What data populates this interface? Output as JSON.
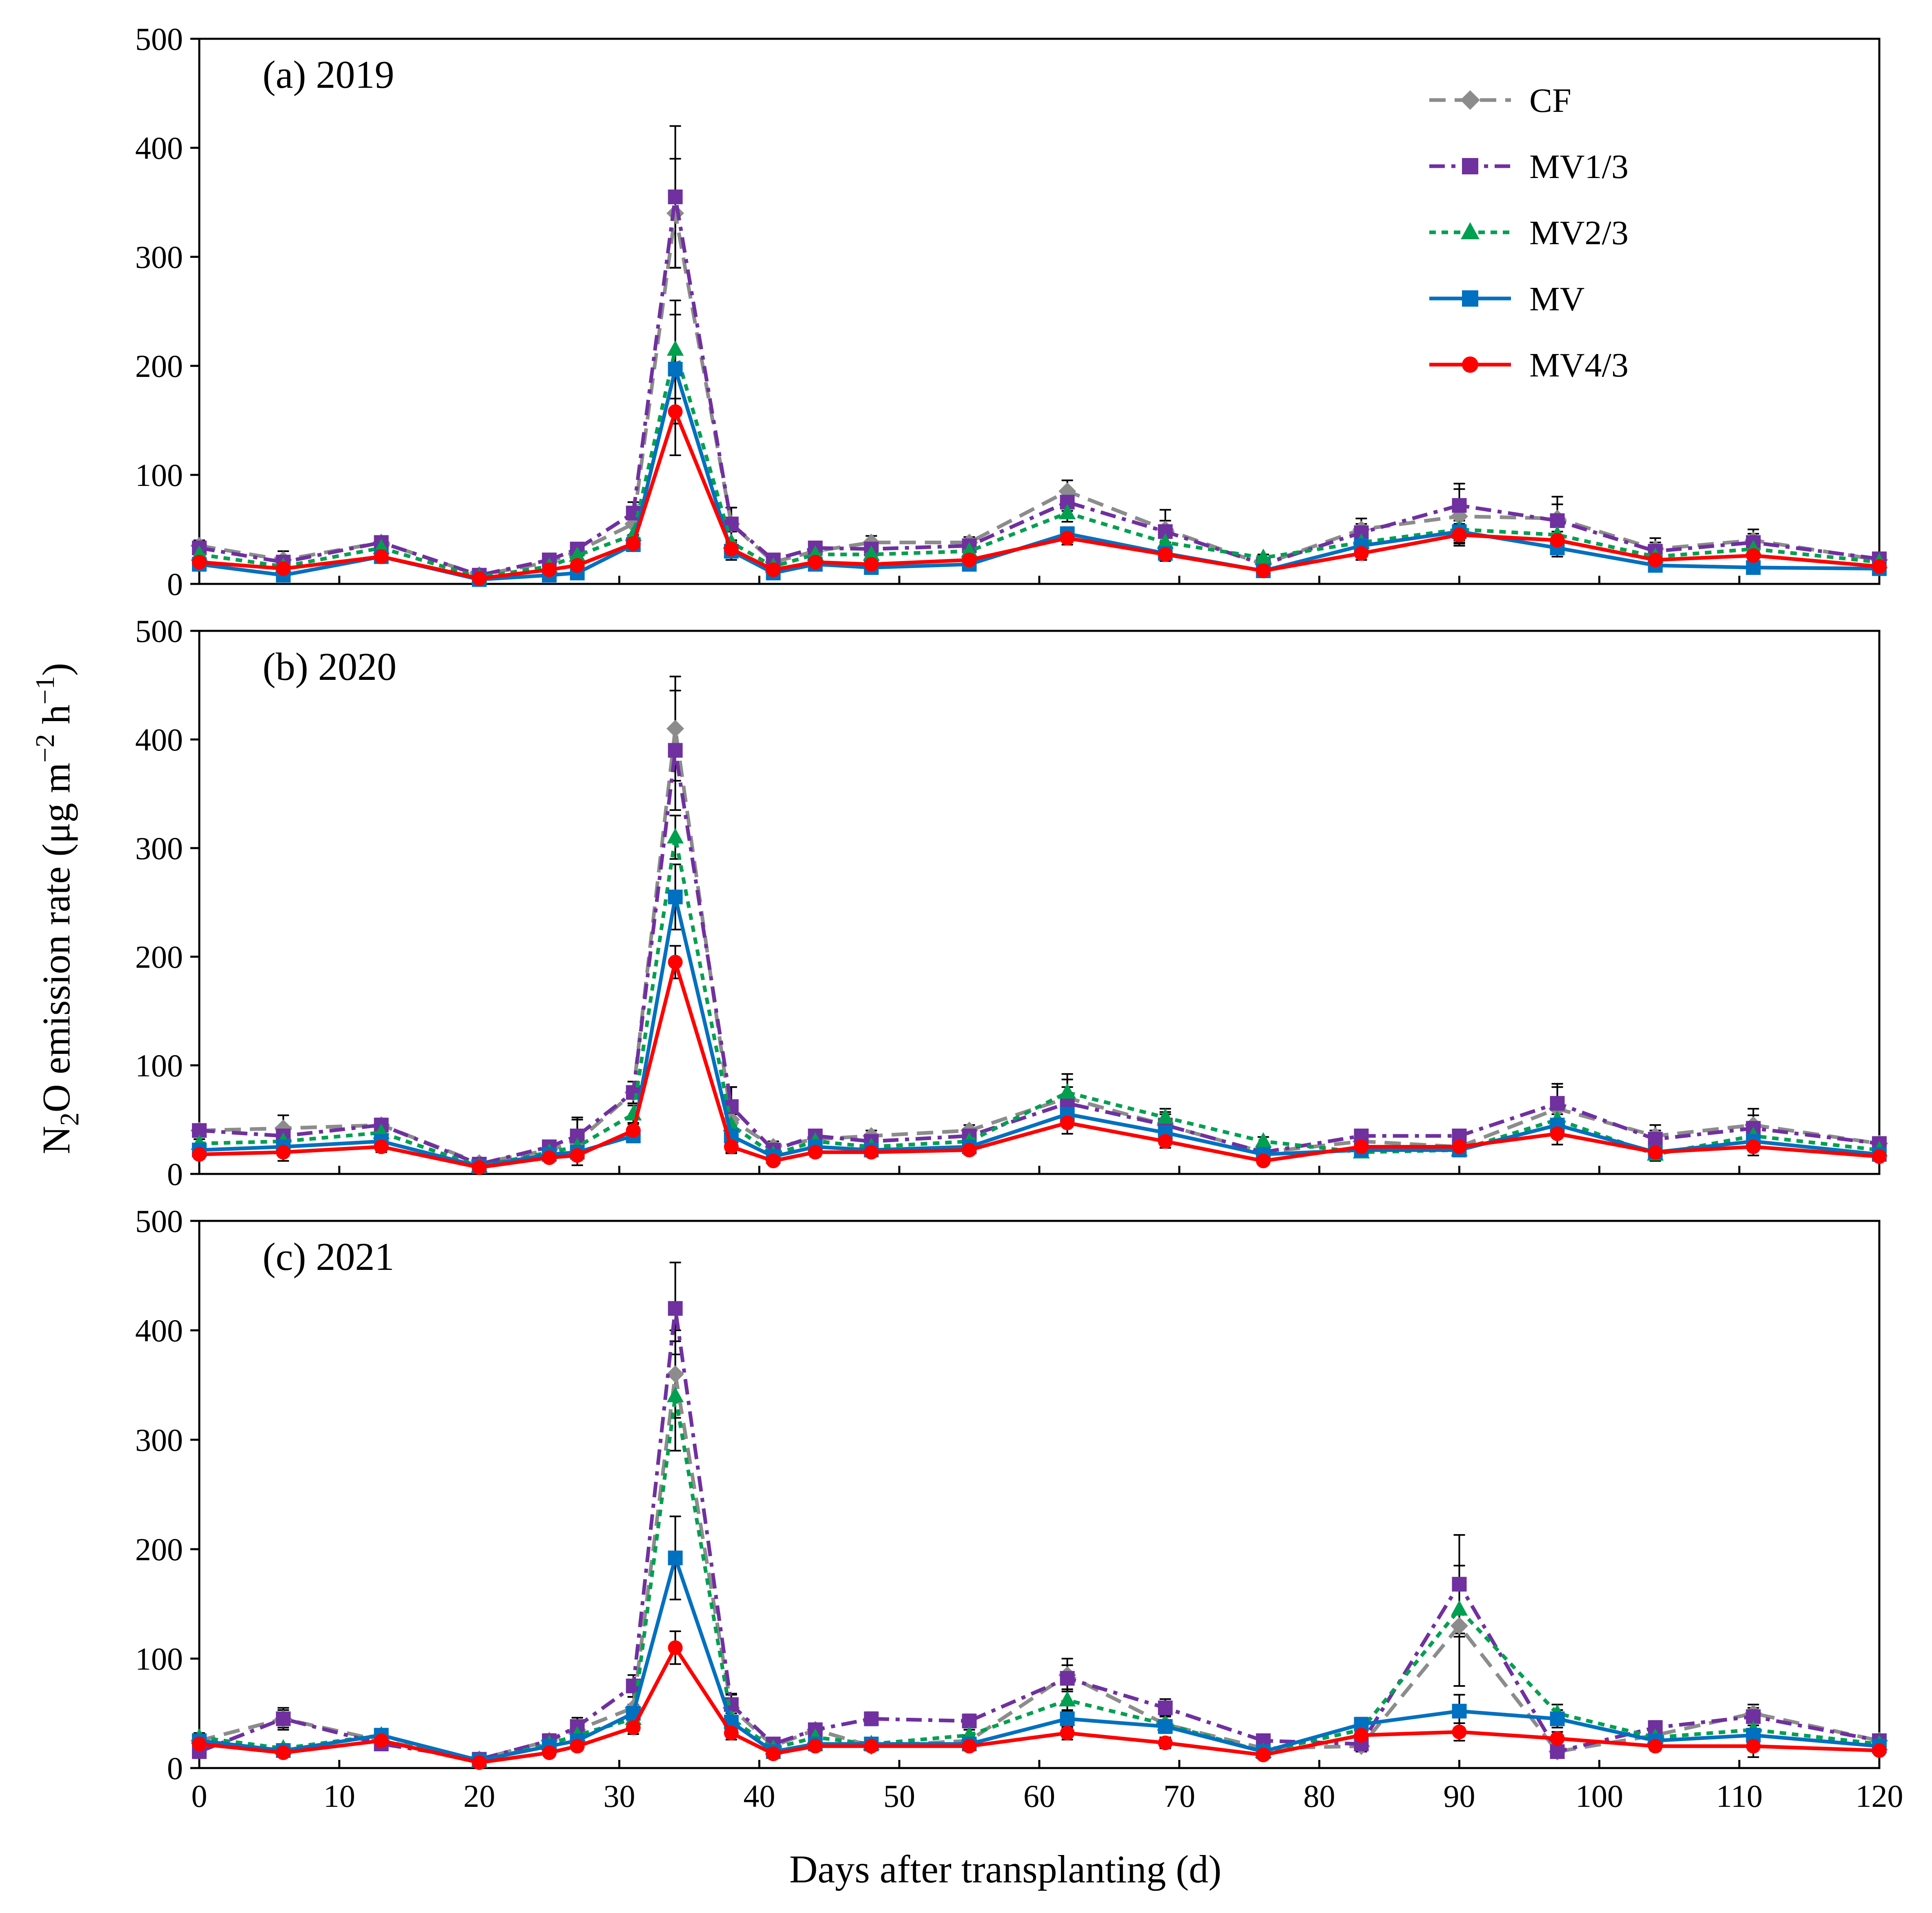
{
  "chart_data": {
    "type": "line",
    "xlabel": "Days after transplanting (d)",
    "ylabel": {
      "main": "N",
      "sub": "2",
      "rest": "O emission rate (μg m",
      "sup1": "−2",
      "mid": " h",
      "sup2": "−1",
      "end": ")"
    },
    "xlim": [
      0,
      120
    ],
    "ylim": [
      0,
      500
    ],
    "x_ticks": [
      0,
      10,
      20,
      30,
      40,
      50,
      60,
      70,
      80,
      90,
      100,
      110,
      120
    ],
    "y_ticks": [
      0,
      100,
      200,
      300,
      400,
      500
    ],
    "x": [
      0,
      6,
      13,
      20,
      25,
      27,
      31,
      34,
      38,
      41,
      44,
      48,
      55,
      62,
      69,
      76,
      83,
      90,
      97,
      104,
      111,
      120
    ],
    "series_styles": [
      {
        "name": "CF",
        "color": "#8c8c8c",
        "dash": "dash",
        "marker": "diamond"
      },
      {
        "name": "MV1/3",
        "color": "#7030a0",
        "dash": "dashdot",
        "marker": "square"
      },
      {
        "name": "MV2/3",
        "color": "#00a050",
        "dash": "dot",
        "marker": "triangle"
      },
      {
        "name": "MV",
        "color": "#0070c0",
        "dash": "solid",
        "marker": "square"
      },
      {
        "name": "MV4/3",
        "color": "#ff0000",
        "dash": "solid",
        "marker": "circle"
      }
    ],
    "panels": [
      {
        "title": "(a) 2019",
        "series": [
          {
            "name": "CF",
            "values": [
              35,
              22,
              38,
              8,
              20,
              30,
              55,
              340,
              55,
              20,
              30,
              38,
              38,
              85,
              50,
              18,
              50,
              62,
              60,
              32,
              40,
              22
            ],
            "errors": [
              5,
              8,
              5,
              3,
              5,
              5,
              10,
              50,
              15,
              5,
              5,
              6,
              5,
              10,
              18,
              3,
              10,
              25,
              20,
              10,
              10,
              4
            ]
          },
          {
            "name": "MV1/3",
            "values": [
              33,
              20,
              38,
              8,
              22,
              32,
              65,
              355,
              55,
              22,
              33,
              32,
              35,
              75,
              48,
              18,
              47,
              72,
              58,
              30,
              38,
              23
            ],
            "errors": [
              5,
              6,
              5,
              3,
              4,
              5,
              10,
              65,
              15,
              4,
              4,
              5,
              6,
              8,
              10,
              3,
              8,
              20,
              15,
              8,
              8,
              4
            ]
          },
          {
            "name": "MV2/3",
            "values": [
              27,
              16,
              33,
              6,
              16,
              26,
              45,
              215,
              38,
              16,
              27,
              27,
              30,
              65,
              38,
              24,
              38,
              50,
              45,
              25,
              32,
              20
            ],
            "errors": [
              4,
              5,
              4,
              2,
              4,
              4,
              8,
              45,
              10,
              4,
              4,
              4,
              5,
              8,
              8,
              3,
              8,
              10,
              10,
              6,
              6,
              4
            ]
          },
          {
            "name": "MV",
            "values": [
              18,
              8,
              25,
              4,
              8,
              10,
              36,
              197,
              30,
              10,
              18,
              15,
              18,
              46,
              28,
              12,
              35,
              48,
              33,
              17,
              15,
              14
            ],
            "errors": [
              3,
              3,
              4,
              2,
              3,
              3,
              6,
              50,
              8,
              3,
              4,
              3,
              4,
              6,
              6,
              3,
              6,
              10,
              8,
              4,
              4,
              3
            ]
          },
          {
            "name": "MV4/3",
            "values": [
              20,
              14,
              25,
              5,
              13,
              17,
              37,
              158,
              32,
              13,
              20,
              18,
              22,
              42,
              27,
              12,
              28,
              45,
              40,
              22,
              26,
              16
            ],
            "errors": [
              4,
              4,
              5,
              2,
              3,
              4,
              6,
              40,
              8,
              3,
              4,
              4,
              4,
              6,
              6,
              3,
              6,
              10,
              8,
              5,
              5,
              3
            ]
          }
        ]
      },
      {
        "title": "(b) 2020",
        "series": [
          {
            "name": "CF",
            "values": [
              40,
              42,
              45,
              10,
              22,
              30,
              75,
              410,
              50,
              25,
              32,
              35,
              40,
              70,
              45,
              20,
              30,
              25,
              60,
              35,
              45,
              28
            ],
            "errors": [
              5,
              12,
              6,
              3,
              5,
              22,
              10,
              48,
              30,
              5,
              6,
              5,
              5,
              22,
              12,
              3,
              5,
              5,
              20,
              10,
              15,
              5
            ]
          },
          {
            "name": "MV1/3",
            "values": [
              40,
              35,
              45,
              9,
              25,
              35,
              75,
              390,
              62,
              22,
              35,
              30,
              35,
              65,
              45,
              20,
              35,
              35,
              65,
              32,
              42,
              28
            ],
            "errors": [
              5,
              8,
              6,
              3,
              5,
              15,
              10,
              55,
              18,
              5,
              5,
              5,
              5,
              15,
              10,
              3,
              5,
              5,
              18,
              8,
              12,
              5
            ]
          },
          {
            "name": "MV2/3",
            "values": [
              28,
              30,
              38,
              7,
              20,
              25,
              55,
              310,
              45,
              18,
              30,
              25,
              30,
              75,
              52,
              30,
              20,
              22,
              50,
              18,
              35,
              22
            ],
            "errors": [
              4,
              6,
              5,
              2,
              4,
              6,
              8,
              20,
              10,
              4,
              5,
              4,
              5,
              12,
              8,
              4,
              4,
              4,
              10,
              6,
              10,
              4
            ]
          },
          {
            "name": "MV",
            "values": [
              22,
              25,
              30,
              7,
              18,
              20,
              35,
              255,
              35,
              16,
              25,
              22,
              25,
              55,
              38,
              18,
              22,
              22,
              45,
              20,
              30,
              18
            ],
            "errors": [
              3,
              5,
              4,
              2,
              4,
              4,
              6,
              30,
              8,
              3,
              4,
              4,
              4,
              8,
              6,
              3,
              4,
              4,
              10,
              5,
              6,
              4
            ]
          },
          {
            "name": "MV4/3",
            "values": [
              18,
              20,
              25,
              6,
              15,
              17,
              40,
              195,
              25,
              12,
              20,
              20,
              22,
              47,
              30,
              12,
              25,
              25,
              37,
              20,
              25,
              16
            ],
            "errors": [
              4,
              8,
              5,
              2,
              3,
              4,
              6,
              15,
              6,
              3,
              4,
              4,
              4,
              10,
              6,
              3,
              5,
              5,
              10,
              5,
              8,
              3
            ]
          }
        ]
      },
      {
        "title": "(c) 2021",
        "series": [
          {
            "name": "CF",
            "values": [
              25,
              45,
              25,
              8,
              25,
              35,
              55,
              360,
              55,
              20,
              35,
              20,
              25,
              85,
              40,
              18,
              20,
              130,
              15,
              30,
              50,
              25
            ],
            "errors": [
              5,
              10,
              6,
              3,
              6,
              8,
              10,
              40,
              12,
              4,
              5,
              4,
              5,
              15,
              8,
              3,
              5,
              55,
              4,
              6,
              8,
              5
            ]
          },
          {
            "name": "MV1/3",
            "values": [
              15,
              45,
              22,
              8,
              25,
              38,
              75,
              420,
              58,
              22,
              35,
              45,
              43,
              82,
              55,
              25,
              22,
              168,
              15,
              37,
              47,
              25
            ],
            "errors": [
              4,
              8,
              5,
              3,
              5,
              8,
              10,
              42,
              10,
              4,
              5,
              6,
              6,
              12,
              8,
              3,
              4,
              45,
              4,
              6,
              8,
              5
            ]
          },
          {
            "name": "MV2/3",
            "values": [
              28,
              18,
              30,
              6,
              22,
              30,
              45,
              340,
              45,
              18,
              28,
              22,
              30,
              62,
              40,
              15,
              35,
              145,
              50,
              28,
              35,
              22
            ],
            "errors": [
              4,
              4,
              5,
              2,
              4,
              5,
              8,
              50,
              10,
              4,
              5,
              4,
              5,
              10,
              8,
              3,
              6,
              25,
              8,
              5,
              6,
              4
            ]
          },
          {
            "name": "MV",
            "values": [
              25,
              16,
              30,
              7,
              20,
              25,
              50,
              192,
              42,
              15,
              22,
              22,
              22,
              45,
              38,
              15,
              40,
              52,
              45,
              25,
              30,
              20
            ],
            "errors": [
              4,
              4,
              5,
              2,
              4,
              5,
              8,
              38,
              8,
              3,
              4,
              4,
              4,
              8,
              6,
              3,
              6,
              15,
              8,
              5,
              5,
              4
            ]
          },
          {
            "name": "MV4/3",
            "values": [
              22,
              14,
              25,
              5,
              14,
              20,
              37,
              110,
              32,
              13,
              20,
              20,
              20,
              32,
              23,
              12,
              30,
              33,
              27,
              20,
              20,
              16
            ],
            "errors": [
              4,
              3,
              4,
              2,
              3,
              4,
              6,
              15,
              6,
              3,
              4,
              4,
              4,
              6,
              5,
              3,
              5,
              8,
              6,
              4,
              10,
              3
            ]
          }
        ]
      }
    ]
  }
}
